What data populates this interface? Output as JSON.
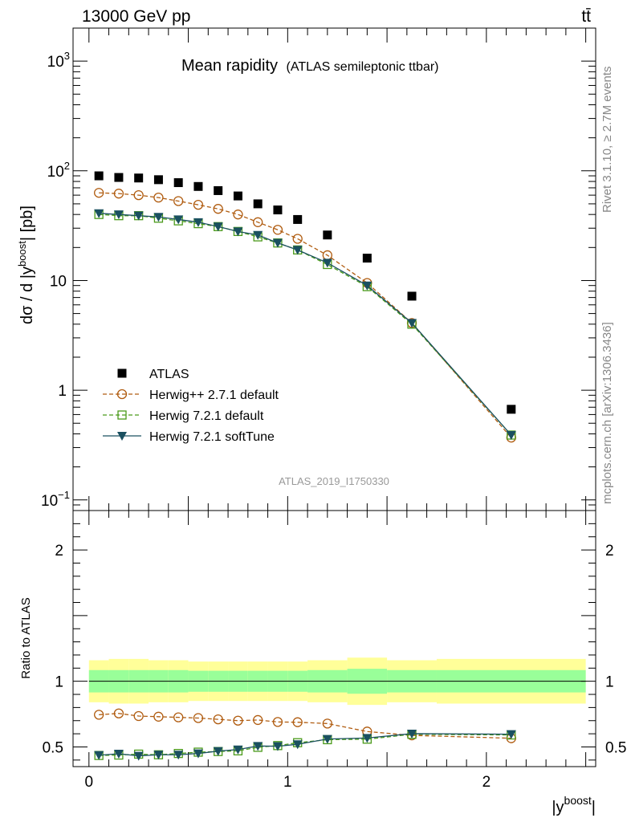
{
  "header": {
    "energy_label": "13000 GeV pp",
    "process_label": "tt̄"
  },
  "side_labels": {
    "rivet": "Rivet 3.1.10, ≥ 2.7M events",
    "mcplots": "mcplots.cern.ch [arXiv:1306.3436]"
  },
  "chart_data": [
    {
      "type": "line",
      "title": "Mean rapidity",
      "subtitle": "(ATLAS semileptonic ttbar)",
      "ylabel": "dσ / d |y^boost| [pb]",
      "ylabel_parts": {
        "main": "dσ / d |y",
        "sup": "boost",
        "tail": "| [pb]"
      },
      "xlabel_parts": {
        "main": "|y",
        "sup": "boost",
        "tail": "|"
      },
      "yscale": "log",
      "ylim": [
        0.08,
        2000
      ],
      "xlim": [
        -0.08,
        2.55
      ],
      "analysis_label": "ATLAS_2019_I1750330",
      "ytick_labels": [
        {
          "base": "10",
          "exp": "3",
          "value": 1000
        },
        {
          "base": "10",
          "exp": "2",
          "value": 100
        },
        {
          "base": "10",
          "exp": "",
          "value": 10
        },
        {
          "base": "1",
          "exp": "",
          "value": 1
        },
        {
          "base": "10",
          "exp": "−1",
          "value": 0.1
        }
      ],
      "x": [
        0.05,
        0.15,
        0.25,
        0.35,
        0.45,
        0.55,
        0.65,
        0.75,
        0.85,
        0.95,
        1.05,
        1.2,
        1.4,
        1.625,
        2.125
      ],
      "bin_edges": [
        0.0,
        0.1,
        0.2,
        0.3,
        0.4,
        0.5,
        0.6,
        0.7,
        0.8,
        0.9,
        1.0,
        1.1,
        1.3,
        1.5,
        1.75,
        2.5
      ],
      "legend_position": "bottom-left",
      "series": [
        {
          "name": "ATLAS",
          "color": "#000000",
          "marker": "square-filled",
          "line": "none",
          "values": [
            90,
            87,
            86,
            83,
            78,
            72,
            66,
            59,
            50,
            44,
            36,
            26,
            16,
            7.2,
            0.67
          ]
        },
        {
          "name": "Herwig++ 2.7.1 default",
          "color": "#b05c10",
          "marker": "circle-open",
          "line": "dashed",
          "values": [
            63,
            62,
            60,
            57,
            53,
            49,
            45,
            40,
            34,
            29,
            24,
            17,
            9.5,
            4.1,
            0.37
          ]
        },
        {
          "name": "Herwig 7.2.1 default",
          "color": "#4a9a1a",
          "marker": "square-open",
          "line": "dashed",
          "values": [
            40,
            39,
            39,
            37,
            35,
            33,
            31,
            28,
            25,
            22,
            19,
            14,
            8.8,
            4.0,
            0.39
          ]
        },
        {
          "name": "Herwig 7.2.1 softTune",
          "color": "#1a5060",
          "marker": "triangle-down-filled",
          "line": "solid",
          "values": [
            41,
            40,
            39,
            38,
            36,
            34,
            31,
            28,
            26,
            22,
            19,
            14.5,
            9.0,
            4.1,
            0.39
          ]
        }
      ]
    },
    {
      "type": "line",
      "ylabel": "Ratio to ATLAS",
      "ylim": [
        0.35,
        2.3
      ],
      "xlim": [
        -0.08,
        2.55
      ],
      "ytick_labels": [
        "2",
        "1",
        "0.5"
      ],
      "ytick_values": [
        2,
        1,
        0.5
      ],
      "xtick_labels": [
        "0",
        "1",
        "2"
      ],
      "xtick_values": [
        0,
        1,
        2
      ],
      "reference_line": 1.0,
      "bands": {
        "total_half_width": [
          0.16,
          0.17,
          0.17,
          0.16,
          0.16,
          0.15,
          0.15,
          0.15,
          0.15,
          0.15,
          0.15,
          0.16,
          0.18,
          0.16,
          0.17
        ],
        "stat_half_width": [
          0.085,
          0.085,
          0.085,
          0.085,
          0.085,
          0.08,
          0.08,
          0.08,
          0.08,
          0.08,
          0.08,
          0.085,
          0.095,
          0.085,
          0.085
        ],
        "outer_color": "#ffff99",
        "inner_color": "#99ff99"
      },
      "series": [
        {
          "name": "Herwig++ 2.7.1 default",
          "color": "#b05c10",
          "marker": "circle-open",
          "line": "dashed",
          "values": [
            0.745,
            0.755,
            0.735,
            0.73,
            0.725,
            0.72,
            0.71,
            0.7,
            0.705,
            0.69,
            0.688,
            0.678,
            0.617,
            0.588,
            0.566
          ]
        },
        {
          "name": "Herwig 7.2.1 default",
          "color": "#4a9a1a",
          "marker": "square-open",
          "line": "dashed",
          "values": [
            0.435,
            0.438,
            0.445,
            0.44,
            0.45,
            0.46,
            0.465,
            0.47,
            0.497,
            0.51,
            0.532,
            0.555,
            0.559,
            0.596,
            0.591
          ]
        },
        {
          "name": "Herwig 7.2.1 softTune",
          "color": "#1a5060",
          "marker": "triangle-down-filled",
          "line": "solid",
          "values": [
            0.437,
            0.448,
            0.432,
            0.44,
            0.44,
            0.45,
            0.468,
            0.48,
            0.507,
            0.505,
            0.52,
            0.56,
            0.568,
            0.601,
            0.597
          ]
        }
      ]
    }
  ]
}
